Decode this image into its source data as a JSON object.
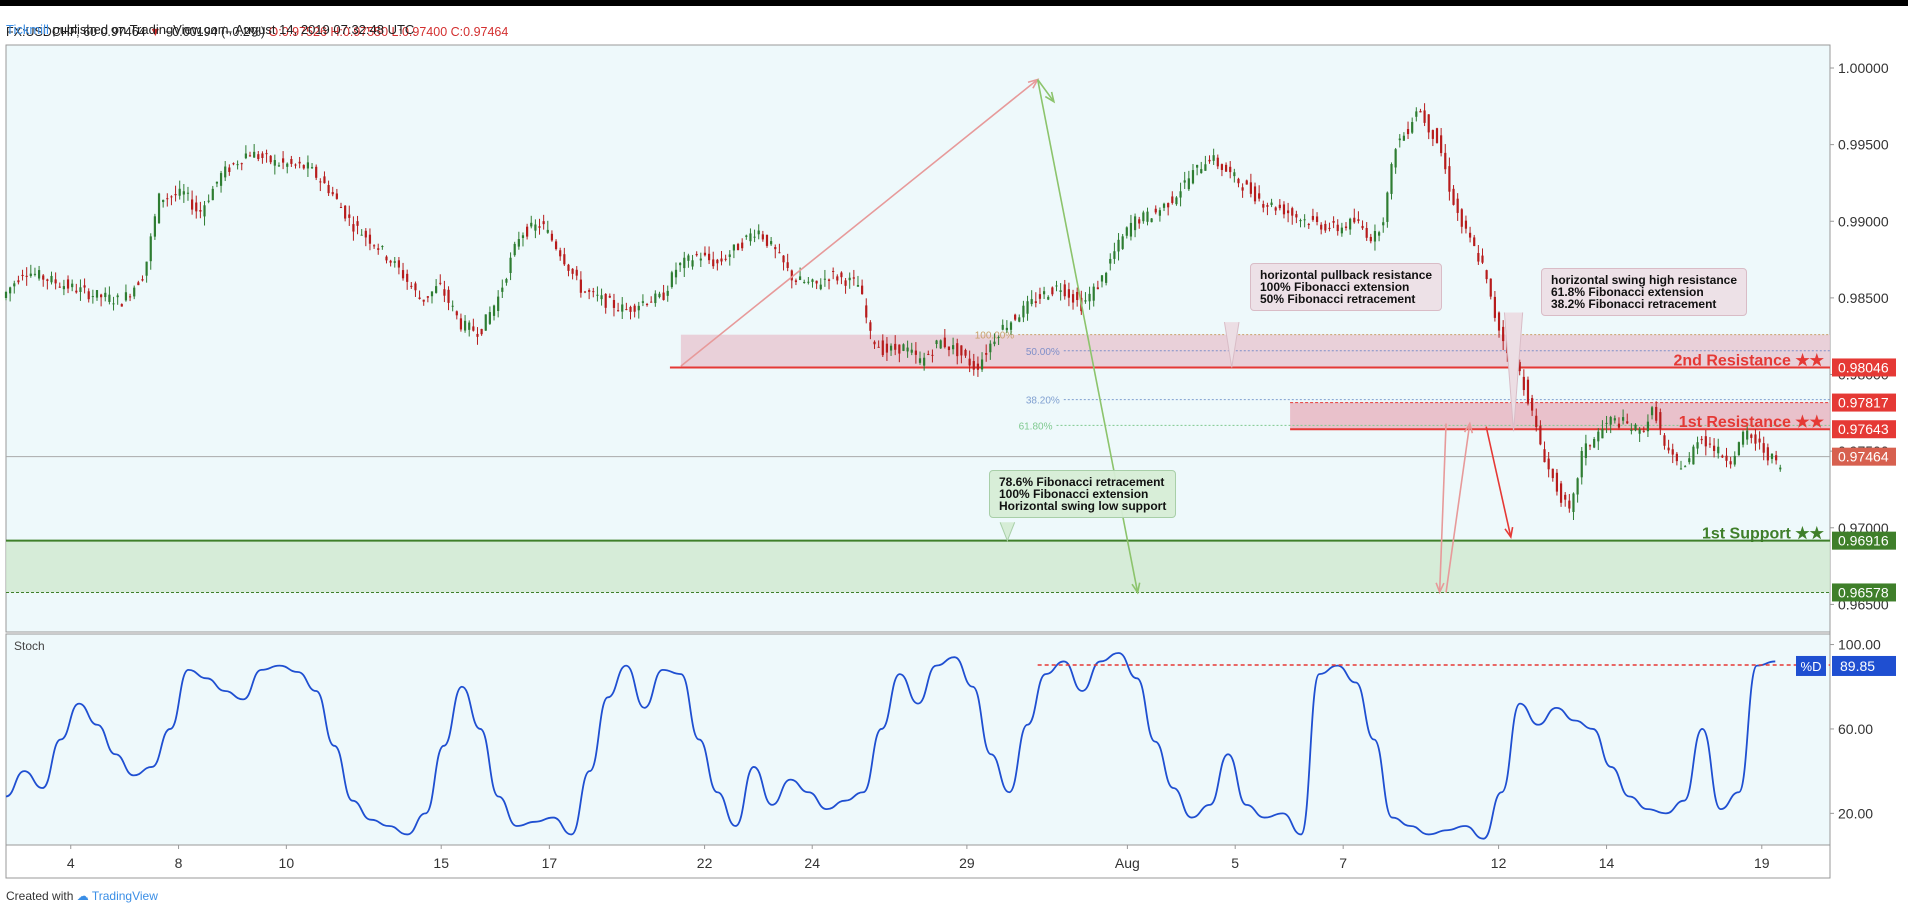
{
  "header": {
    "publisher": "Tickmill",
    "published_text": "published on TradingView.com, August 14, 2019 07:32:48 UTC",
    "symbol_line_prefix": "FX:USDCHF, 60",
    "last": "0.97464",
    "change": "−0.00194 (−0.2%)",
    "ohlc": "O:0.97526 H:0.97550 L:0.97400 C:0.97464",
    "down_color": "#d32f2f"
  },
  "footer": {
    "created_with": "Created with",
    "brand": "TradingView"
  },
  "notes": {
    "pullback": [
      "horizontal pullback resistance",
      "100% Fibonacci extension",
      "50% Fibonacci retracement"
    ],
    "swing_high": [
      "horizontal swing high resistance",
      "61.8% Fibonacci extension",
      "38.2% Fibonacci retracement"
    ],
    "support": [
      "78.6% Fibonacci retracement",
      "100% Fibonacci extension",
      "Horizontal swing low support"
    ]
  },
  "colors": {
    "bg": "#eef9fb",
    "up": "#2e7d32",
    "down": "#b71c1c",
    "resistance": "#e53935",
    "support": "#3f7f2a",
    "stoch": "#1f4fd1",
    "zone_res": "#e7c9d2",
    "zone_sup": "#cfe9cf"
  },
  "chart_data": [
    {
      "type": "candlestick",
      "y_ticks": [
        1.0,
        0.995,
        0.99,
        0.985,
        0.98,
        0.975,
        0.97,
        0.965
      ],
      "y_tick_labels": [
        "1.00000",
        "0.99500",
        "0.99000",
        "0.98500",
        "0.98000",
        "0.97500",
        "0.97000",
        "0.96500"
      ],
      "ylim": [
        0.9632,
        1.0015
      ],
      "x_labels": [
        {
          "label": "4",
          "pos": 0.0355
        },
        {
          "label": "8",
          "pos": 0.0946
        },
        {
          "label": "10",
          "pos": 0.1537
        },
        {
          "label": "15",
          "pos": 0.2386
        },
        {
          "label": "17",
          "pos": 0.2979
        },
        {
          "label": "22",
          "pos": 0.383
        },
        {
          "label": "24",
          "pos": 0.442
        },
        {
          "label": "29",
          "pos": 0.5268
        },
        {
          "label": "Aug",
          "pos": 0.6148
        },
        {
          "label": "5",
          "pos": 0.6739
        },
        {
          "label": "7",
          "pos": 0.7331
        },
        {
          "label": "12",
          "pos": 0.8183
        },
        {
          "label": "14",
          "pos": 0.8775
        },
        {
          "label": "19",
          "pos": 0.9626
        }
      ],
      "price_path": [
        [
          0.0,
          0.985
        ],
        [
          0.012,
          0.9868
        ],
        [
          0.03,
          0.986
        ],
        [
          0.05,
          0.9852
        ],
        [
          0.066,
          0.9848
        ],
        [
          0.078,
          0.9866
        ],
        [
          0.086,
          0.9915
        ],
        [
          0.1,
          0.9918
        ],
        [
          0.108,
          0.9905
        ],
        [
          0.12,
          0.993
        ],
        [
          0.135,
          0.9945
        ],
        [
          0.15,
          0.9938
        ],
        [
          0.168,
          0.9935
        ],
        [
          0.18,
          0.992
        ],
        [
          0.192,
          0.9898
        ],
        [
          0.205,
          0.9885
        ],
        [
          0.218,
          0.9868
        ],
        [
          0.23,
          0.9848
        ],
        [
          0.24,
          0.9858
        ],
        [
          0.252,
          0.9832
        ],
        [
          0.262,
          0.9828
        ],
        [
          0.272,
          0.985
        ],
        [
          0.284,
          0.9892
        ],
        [
          0.296,
          0.9898
        ],
        [
          0.306,
          0.988
        ],
        [
          0.318,
          0.9855
        ],
        [
          0.33,
          0.9848
        ],
        [
          0.342,
          0.9842
        ],
        [
          0.352,
          0.9848
        ],
        [
          0.362,
          0.985
        ],
        [
          0.37,
          0.987
        ],
        [
          0.382,
          0.9878
        ],
        [
          0.392,
          0.9872
        ],
        [
          0.402,
          0.9882
        ],
        [
          0.414,
          0.9895
        ],
        [
          0.424,
          0.988
        ],
        [
          0.434,
          0.9862
        ],
        [
          0.446,
          0.9858
        ],
        [
          0.454,
          0.9865
        ],
        [
          0.462,
          0.9862
        ],
        [
          0.47,
          0.9858
        ],
        [
          0.476,
          0.9825
        ],
        [
          0.484,
          0.9815
        ],
        [
          0.494,
          0.9818
        ],
        [
          0.504,
          0.9808
        ],
        [
          0.514,
          0.9822
        ],
        [
          0.524,
          0.9815
        ],
        [
          0.534,
          0.9804
        ],
        [
          0.546,
          0.9828
        ],
        [
          0.558,
          0.984
        ],
        [
          0.568,
          0.985
        ],
        [
          0.58,
          0.9858
        ],
        [
          0.592,
          0.9845
        ],
        [
          0.602,
          0.986
        ],
        [
          0.61,
          0.988
        ],
        [
          0.62,
          0.99
        ],
        [
          0.632,
          0.9905
        ],
        [
          0.642,
          0.9915
        ],
        [
          0.652,
          0.993
        ],
        [
          0.662,
          0.9942
        ],
        [
          0.672,
          0.9932
        ],
        [
          0.682,
          0.9922
        ],
        [
          0.692,
          0.9912
        ],
        [
          0.702,
          0.9908
        ],
        [
          0.712,
          0.9902
        ],
        [
          0.722,
          0.9898
        ],
        [
          0.732,
          0.9895
        ],
        [
          0.742,
          0.99
        ],
        [
          0.752,
          0.9888
        ],
        [
          0.758,
          0.9905
        ],
        [
          0.764,
          0.995
        ],
        [
          0.77,
          0.9958
        ],
        [
          0.776,
          0.9975
        ],
        [
          0.782,
          0.9962
        ],
        [
          0.788,
          0.995
        ],
        [
          0.794,
          0.992
        ],
        [
          0.8,
          0.9898
        ],
        [
          0.806,
          0.9885
        ],
        [
          0.812,
          0.987
        ],
        [
          0.818,
          0.984
        ],
        [
          0.824,
          0.982
        ],
        [
          0.83,
          0.9808
        ],
        [
          0.836,
          0.9788
        ],
        [
          0.842,
          0.976
        ],
        [
          0.848,
          0.9738
        ],
        [
          0.854,
          0.9722
        ],
        [
          0.86,
          0.9708
        ],
        [
          0.866,
          0.9748
        ],
        [
          0.874,
          0.976
        ],
        [
          0.882,
          0.977
        ],
        [
          0.89,
          0.9768
        ],
        [
          0.898,
          0.9762
        ],
        [
          0.906,
          0.9778
        ],
        [
          0.912,
          0.975
        ],
        [
          0.918,
          0.9742
        ],
        [
          0.924,
          0.974
        ],
        [
          0.93,
          0.976
        ],
        [
          0.936,
          0.9755
        ],
        [
          0.942,
          0.9748
        ],
        [
          0.948,
          0.9745
        ],
        [
          0.956,
          0.9762
        ],
        [
          0.962,
          0.9755
        ],
        [
          0.968,
          0.9748
        ],
        [
          0.976,
          0.9738
        ],
        [
          0.984,
          0.9742
        ],
        [
          0.992,
          0.973
        ],
        [
          1.0,
          0.9725
        ]
      ],
      "price_path_note": "",
      "levels": [
        {
          "name": "2nd Resistance ★★",
          "price": 0.98046,
          "label": "0.98046"
        },
        {
          "name": "1st Resistance ★★",
          "price": 0.97643,
          "label": "0.97643"
        },
        {
          "name": "",
          "price": 0.97817,
          "label": "0.97817"
        },
        {
          "name": "",
          "price": 0.97464,
          "label": "0.97464"
        },
        {
          "name": "1st Support ★★",
          "price": 0.96916,
          "label": "0.96916"
        },
        {
          "name": "",
          "price": 0.96578,
          "label": "0.96578"
        }
      ],
      "fib_labels": [
        "100.00%",
        "50.00%",
        "38.20%",
        "61.80%"
      ]
    },
    {
      "type": "line",
      "name": "Stoch",
      "y_ticks": [
        100,
        60,
        20
      ],
      "y_tick_labels": [
        "100.00",
        "60.00",
        "20.00"
      ],
      "ylim": [
        5,
        105
      ],
      "current_label": "%D",
      "current_value": "89.85",
      "values": [
        [
          0.0,
          28
        ],
        [
          0.01,
          40
        ],
        [
          0.02,
          32
        ],
        [
          0.03,
          55
        ],
        [
          0.04,
          72
        ],
        [
          0.05,
          62
        ],
        [
          0.06,
          48
        ],
        [
          0.07,
          38
        ],
        [
          0.08,
          42
        ],
        [
          0.09,
          60
        ],
        [
          0.1,
          88
        ],
        [
          0.11,
          84
        ],
        [
          0.12,
          78
        ],
        [
          0.13,
          74
        ],
        [
          0.14,
          88
        ],
        [
          0.15,
          90
        ],
        [
          0.16,
          87
        ],
        [
          0.17,
          78
        ],
        [
          0.18,
          52
        ],
        [
          0.19,
          26
        ],
        [
          0.2,
          17
        ],
        [
          0.21,
          14
        ],
        [
          0.22,
          10
        ],
        [
          0.23,
          20
        ],
        [
          0.24,
          52
        ],
        [
          0.25,
          80
        ],
        [
          0.26,
          60
        ],
        [
          0.27,
          28
        ],
        [
          0.28,
          14
        ],
        [
          0.29,
          16
        ],
        [
          0.3,
          18
        ],
        [
          0.31,
          10
        ],
        [
          0.32,
          40
        ],
        [
          0.33,
          75
        ],
        [
          0.34,
          90
        ],
        [
          0.35,
          70
        ],
        [
          0.36,
          88
        ],
        [
          0.37,
          86
        ],
        [
          0.38,
          55
        ],
        [
          0.39,
          30
        ],
        [
          0.4,
          14
        ],
        [
          0.41,
          42
        ],
        [
          0.42,
          24
        ],
        [
          0.43,
          36
        ],
        [
          0.44,
          30
        ],
        [
          0.45,
          22
        ],
        [
          0.46,
          26
        ],
        [
          0.47,
          30
        ],
        [
          0.48,
          60
        ],
        [
          0.49,
          86
        ],
        [
          0.5,
          72
        ],
        [
          0.51,
          90
        ],
        [
          0.52,
          94
        ],
        [
          0.53,
          80
        ],
        [
          0.54,
          48
        ],
        [
          0.55,
          30
        ],
        [
          0.56,
          62
        ],
        [
          0.57,
          86
        ],
        [
          0.58,
          92
        ],
        [
          0.59,
          78
        ],
        [
          0.6,
          92
        ],
        [
          0.61,
          96
        ],
        [
          0.62,
          84
        ],
        [
          0.63,
          54
        ],
        [
          0.64,
          32
        ],
        [
          0.65,
          18
        ],
        [
          0.66,
          24
        ],
        [
          0.67,
          48
        ],
        [
          0.68,
          24
        ],
        [
          0.69,
          18
        ],
        [
          0.7,
          20
        ],
        [
          0.71,
          10
        ],
        [
          0.72,
          86
        ],
        [
          0.73,
          90
        ],
        [
          0.74,
          82
        ],
        [
          0.75,
          55
        ],
        [
          0.76,
          18
        ],
        [
          0.77,
          14
        ],
        [
          0.78,
          10
        ],
        [
          0.79,
          12
        ],
        [
          0.8,
          14
        ],
        [
          0.81,
          8
        ],
        [
          0.82,
          30
        ],
        [
          0.83,
          72
        ],
        [
          0.84,
          62
        ],
        [
          0.85,
          70
        ],
        [
          0.86,
          64
        ],
        [
          0.87,
          60
        ],
        [
          0.88,
          42
        ],
        [
          0.89,
          28
        ],
        [
          0.9,
          22
        ],
        [
          0.91,
          20
        ],
        [
          0.92,
          26
        ],
        [
          0.93,
          60
        ],
        [
          0.94,
          22
        ],
        [
          0.95,
          30
        ],
        [
          0.96,
          90
        ],
        [
          0.97,
          92
        ]
      ],
      "values_note": ""
    }
  ]
}
